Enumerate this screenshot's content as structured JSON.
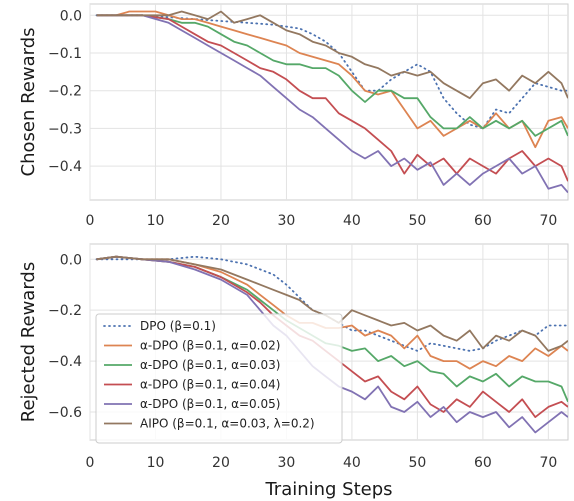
{
  "chart_data": [
    {
      "type": "line",
      "ylabel": "Chosen Rewards",
      "xlabel": "",
      "xlim": [
        0,
        73
      ],
      "ylim": [
        -0.49,
        0.03
      ],
      "xticks": [
        "0",
        "10",
        "20",
        "30",
        "40",
        "50",
        "60",
        "70"
      ],
      "yticks": [
        {
          "value": 0.0,
          "label": "0.0"
        },
        {
          "value": -0.1,
          "label": "−0.1"
        },
        {
          "value": -0.2,
          "label": "−0.2"
        },
        {
          "value": -0.3,
          "label": "−0.3"
        },
        {
          "value": -0.4,
          "label": "−0.4"
        }
      ],
      "grid": true,
      "series": [
        {
          "name": "DPO (β=0.1)",
          "color": "#4c72b0",
          "dash": "dotted",
          "x": [
            1,
            4,
            8,
            12,
            16,
            20,
            24,
            28,
            30,
            32,
            34,
            36,
            38,
            40,
            42,
            44,
            46,
            48,
            50,
            52,
            54,
            56,
            58,
            60,
            62,
            64,
            66,
            68,
            70,
            72,
            73
          ],
          "y": [
            0,
            0,
            0,
            -0.005,
            -0.01,
            -0.015,
            -0.02,
            -0.025,
            -0.03,
            -0.035,
            -0.05,
            -0.07,
            -0.1,
            -0.15,
            -0.2,
            -0.2,
            -0.17,
            -0.15,
            -0.13,
            -0.15,
            -0.22,
            -0.26,
            -0.29,
            -0.3,
            -0.25,
            -0.26,
            -0.22,
            -0.18,
            -0.19,
            -0.2,
            -0.2
          ]
        },
        {
          "name": "α-DPO (β=0.1, α=0.02)",
          "color": "#dd8452",
          "dash": "solid",
          "x": [
            1,
            4,
            6,
            8,
            10,
            12,
            14,
            16,
            18,
            20,
            22,
            24,
            26,
            28,
            30,
            32,
            34,
            36,
            38,
            40,
            42,
            44,
            46,
            48,
            50,
            52,
            54,
            56,
            58,
            60,
            62,
            64,
            66,
            68,
            70,
            72,
            73
          ],
          "y": [
            0,
            0,
            0.01,
            0.01,
            0.01,
            0,
            -0.01,
            -0.01,
            -0.02,
            -0.03,
            -0.04,
            -0.05,
            -0.06,
            -0.07,
            -0.08,
            -0.1,
            -0.11,
            -0.12,
            -0.13,
            -0.16,
            -0.2,
            -0.21,
            -0.2,
            -0.25,
            -0.3,
            -0.28,
            -0.32,
            -0.3,
            -0.28,
            -0.3,
            -0.26,
            -0.3,
            -0.28,
            -0.35,
            -0.28,
            -0.27,
            -0.3
          ]
        },
        {
          "name": "α-DPO (β=0.1, α=0.03)",
          "color": "#55a868",
          "dash": "solid",
          "x": [
            1,
            4,
            8,
            12,
            14,
            16,
            18,
            20,
            22,
            24,
            26,
            28,
            30,
            32,
            34,
            36,
            38,
            40,
            42,
            44,
            46,
            48,
            50,
            52,
            54,
            56,
            58,
            60,
            62,
            64,
            66,
            68,
            70,
            72,
            73
          ],
          "y": [
            0,
            0,
            0,
            -0.01,
            -0.02,
            -0.02,
            -0.03,
            -0.05,
            -0.07,
            -0.08,
            -0.1,
            -0.12,
            -0.13,
            -0.13,
            -0.14,
            -0.14,
            -0.16,
            -0.2,
            -0.23,
            -0.2,
            -0.2,
            -0.22,
            -0.22,
            -0.27,
            -0.3,
            -0.3,
            -0.27,
            -0.3,
            -0.28,
            -0.3,
            -0.28,
            -0.32,
            -0.3,
            -0.28,
            -0.32
          ]
        },
        {
          "name": "α-DPO (β=0.1, α=0.04)",
          "color": "#c44e52",
          "dash": "solid",
          "x": [
            1,
            4,
            8,
            12,
            14,
            16,
            18,
            20,
            22,
            24,
            26,
            28,
            30,
            32,
            34,
            36,
            38,
            40,
            42,
            44,
            46,
            48,
            50,
            52,
            54,
            56,
            58,
            60,
            62,
            64,
            66,
            68,
            70,
            72,
            73
          ],
          "y": [
            0,
            0,
            0,
            -0.01,
            -0.03,
            -0.05,
            -0.07,
            -0.08,
            -0.1,
            -0.12,
            -0.14,
            -0.15,
            -0.17,
            -0.2,
            -0.22,
            -0.22,
            -0.26,
            -0.28,
            -0.3,
            -0.33,
            -0.36,
            -0.42,
            -0.37,
            -0.4,
            -0.38,
            -0.42,
            -0.38,
            -0.4,
            -0.42,
            -0.38,
            -0.36,
            -0.4,
            -0.38,
            -0.4,
            -0.44
          ]
        },
        {
          "name": "α-DPO (β=0.1, α=0.05)",
          "color": "#8172b3",
          "dash": "solid",
          "x": [
            1,
            4,
            8,
            12,
            14,
            16,
            18,
            20,
            22,
            24,
            26,
            28,
            30,
            32,
            34,
            36,
            38,
            40,
            42,
            44,
            46,
            48,
            50,
            52,
            54,
            56,
            58,
            60,
            62,
            64,
            66,
            68,
            70,
            72,
            73
          ],
          "y": [
            0,
            0,
            0,
            -0.02,
            -0.04,
            -0.06,
            -0.08,
            -0.1,
            -0.12,
            -0.14,
            -0.16,
            -0.19,
            -0.22,
            -0.25,
            -0.27,
            -0.3,
            -0.33,
            -0.36,
            -0.38,
            -0.36,
            -0.4,
            -0.38,
            -0.41,
            -0.39,
            -0.45,
            -0.42,
            -0.45,
            -0.42,
            -0.4,
            -0.38,
            -0.42,
            -0.4,
            -0.46,
            -0.45,
            -0.47
          ]
        },
        {
          "name": "AIPO (β=0.1, α=0.03, λ=0.2)",
          "color": "#937860",
          "dash": "solid",
          "x": [
            1,
            4,
            8,
            12,
            14,
            16,
            18,
            20,
            22,
            24,
            26,
            28,
            30,
            32,
            34,
            36,
            38,
            40,
            42,
            44,
            46,
            48,
            50,
            52,
            54,
            56,
            58,
            60,
            62,
            64,
            66,
            68,
            70,
            72,
            73
          ],
          "y": [
            0,
            0,
            0,
            0,
            0.01,
            0,
            -0.01,
            0.01,
            -0.02,
            -0.01,
            0,
            -0.02,
            -0.04,
            -0.05,
            -0.07,
            -0.08,
            -0.1,
            -0.11,
            -0.13,
            -0.14,
            -0.16,
            -0.15,
            -0.16,
            -0.15,
            -0.18,
            -0.2,
            -0.22,
            -0.18,
            -0.17,
            -0.2,
            -0.16,
            -0.18,
            -0.15,
            -0.18,
            -0.22
          ]
        }
      ]
    },
    {
      "type": "line",
      "ylabel": "Rejected Rewards",
      "xlabel": "Training Steps",
      "xlim": [
        0,
        73
      ],
      "ylim": [
        -0.71,
        0.06
      ],
      "xticks": [
        "0",
        "10",
        "20",
        "30",
        "40",
        "50",
        "60",
        "70"
      ],
      "yticks": [
        {
          "value": 0.0,
          "label": "0.0"
        },
        {
          "value": -0.2,
          "label": "−0.2"
        },
        {
          "value": -0.4,
          "label": "−0.4"
        },
        {
          "value": -0.6,
          "label": "−0.6"
        }
      ],
      "grid": true,
      "legend_position": "lower-left",
      "series": [
        {
          "name": "DPO (β=0.1)",
          "color": "#4c72b0",
          "dash": "dotted",
          "x": [
            1,
            4,
            8,
            12,
            16,
            20,
            24,
            28,
            30,
            32,
            34,
            36,
            38,
            40,
            42,
            44,
            46,
            48,
            50,
            52,
            54,
            56,
            58,
            60,
            62,
            64,
            66,
            68,
            70,
            72,
            73
          ],
          "y": [
            0,
            0,
            0,
            0,
            0.01,
            0,
            -0.02,
            -0.06,
            -0.1,
            -0.15,
            -0.2,
            -0.22,
            -0.25,
            -0.28,
            -0.28,
            -0.3,
            -0.32,
            -0.34,
            -0.36,
            -0.33,
            -0.34,
            -0.35,
            -0.36,
            -0.35,
            -0.32,
            -0.3,
            -0.28,
            -0.3,
            -0.26,
            -0.26,
            -0.26
          ]
        },
        {
          "name": "α-DPO (β=0.1, α=0.02)",
          "color": "#dd8452",
          "dash": "solid",
          "x": [
            1,
            4,
            8,
            12,
            16,
            20,
            24,
            26,
            28,
            30,
            32,
            34,
            36,
            38,
            40,
            42,
            44,
            46,
            48,
            50,
            52,
            54,
            56,
            58,
            60,
            62,
            64,
            66,
            68,
            70,
            72,
            73
          ],
          "y": [
            0,
            0.01,
            0,
            0,
            -0.02,
            -0.05,
            -0.1,
            -0.14,
            -0.18,
            -0.22,
            -0.25,
            -0.25,
            -0.27,
            -0.27,
            -0.26,
            -0.3,
            -0.28,
            -0.3,
            -0.35,
            -0.3,
            -0.38,
            -0.4,
            -0.4,
            -0.43,
            -0.4,
            -0.42,
            -0.38,
            -0.4,
            -0.35,
            -0.38,
            -0.34,
            -0.36
          ]
        },
        {
          "name": "α-DPO (β=0.1, α=0.03)",
          "color": "#55a868",
          "dash": "solid",
          "x": [
            1,
            4,
            8,
            12,
            16,
            20,
            24,
            26,
            28,
            30,
            32,
            34,
            36,
            38,
            40,
            42,
            44,
            46,
            48,
            50,
            52,
            54,
            56,
            58,
            60,
            62,
            64,
            66,
            68,
            70,
            72,
            73
          ],
          "y": [
            0,
            0.01,
            0,
            -0.01,
            -0.03,
            -0.07,
            -0.12,
            -0.16,
            -0.2,
            -0.24,
            -0.27,
            -0.3,
            -0.33,
            -0.34,
            -0.36,
            -0.35,
            -0.4,
            -0.38,
            -0.42,
            -0.4,
            -0.44,
            -0.45,
            -0.5,
            -0.46,
            -0.48,
            -0.45,
            -0.5,
            -0.46,
            -0.48,
            -0.48,
            -0.5,
            -0.56
          ]
        },
        {
          "name": "α-DPO (β=0.1, α=0.04)",
          "color": "#c44e52",
          "dash": "solid",
          "x": [
            1,
            4,
            8,
            12,
            16,
            20,
            24,
            26,
            28,
            30,
            32,
            34,
            36,
            38,
            40,
            42,
            44,
            46,
            48,
            50,
            52,
            54,
            56,
            58,
            60,
            62,
            64,
            66,
            68,
            70,
            72,
            73
          ],
          "y": [
            0,
            0.01,
            0,
            -0.01,
            -0.03,
            -0.07,
            -0.13,
            -0.17,
            -0.22,
            -0.26,
            -0.3,
            -0.32,
            -0.36,
            -0.4,
            -0.44,
            -0.48,
            -0.46,
            -0.52,
            -0.55,
            -0.5,
            -0.57,
            -0.6,
            -0.55,
            -0.58,
            -0.52,
            -0.56,
            -0.6,
            -0.55,
            -0.62,
            -0.58,
            -0.56,
            -0.58
          ]
        },
        {
          "name": "α-DPO (β=0.1, α=0.05)",
          "color": "#8172b3",
          "dash": "solid",
          "x": [
            1,
            4,
            8,
            12,
            16,
            20,
            24,
            26,
            28,
            30,
            32,
            34,
            36,
            38,
            40,
            42,
            44,
            46,
            48,
            50,
            52,
            54,
            56,
            58,
            60,
            62,
            64,
            66,
            68,
            70,
            72,
            73
          ],
          "y": [
            0,
            0.01,
            0,
            -0.01,
            -0.04,
            -0.08,
            -0.14,
            -0.2,
            -0.26,
            -0.3,
            -0.36,
            -0.42,
            -0.46,
            -0.5,
            -0.52,
            -0.55,
            -0.5,
            -0.58,
            -0.6,
            -0.56,
            -0.62,
            -0.58,
            -0.64,
            -0.6,
            -0.62,
            -0.6,
            -0.66,
            -0.62,
            -0.68,
            -0.64,
            -0.6,
            -0.62
          ]
        },
        {
          "name": "AIPO (β=0.1, α=0.03, λ=0.2)",
          "color": "#937860",
          "dash": "solid",
          "x": [
            1,
            4,
            8,
            12,
            16,
            20,
            24,
            26,
            28,
            30,
            32,
            34,
            36,
            38,
            40,
            42,
            44,
            46,
            48,
            50,
            52,
            54,
            56,
            58,
            60,
            62,
            64,
            66,
            68,
            70,
            72,
            73
          ],
          "y": [
            0,
            0.01,
            0,
            0,
            -0.02,
            -0.04,
            -0.08,
            -0.1,
            -0.12,
            -0.14,
            -0.16,
            -0.2,
            -0.22,
            -0.25,
            -0.2,
            -0.22,
            -0.24,
            -0.26,
            -0.25,
            -0.28,
            -0.26,
            -0.3,
            -0.32,
            -0.28,
            -0.35,
            -0.3,
            -0.32,
            -0.28,
            -0.3,
            -0.36,
            -0.34,
            -0.32
          ]
        }
      ]
    }
  ]
}
